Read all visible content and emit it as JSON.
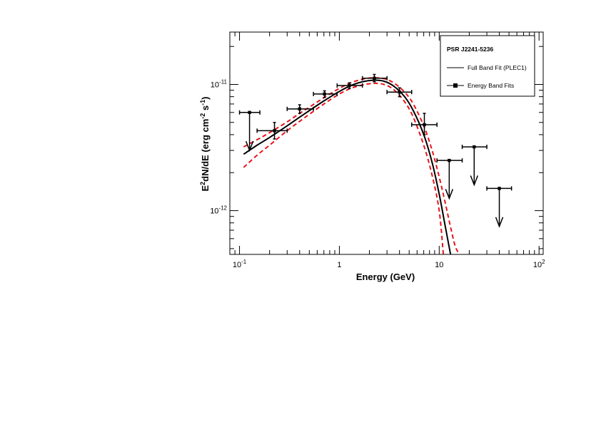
{
  "chart_data": {
    "type": "scatter",
    "x_scale": "log",
    "y_scale": "log",
    "xlim": [
      0.08,
      110
    ],
    "ylim": [
      4.5e-13,
      2.6e-11
    ],
    "xlabel": "Energy (GeV)",
    "ylabel": {
      "base": "E",
      "sup1": "2",
      "mid": "dN/dE (erg cm",
      "sup2": "-2",
      "mid2": " s",
      "sup3": "-1",
      "end": ")"
    },
    "x_ticks": [
      {
        "value": 0.1,
        "base": "10",
        "exp": "-1"
      },
      {
        "value": 1,
        "base": "1",
        "exp": ""
      },
      {
        "value": 10,
        "base": "10",
        "exp": ""
      },
      {
        "value": 100,
        "base": "10",
        "exp": "2"
      }
    ],
    "y_ticks": [
      {
        "value": 1e-12,
        "base": "10",
        "exp": "-12"
      },
      {
        "value": 1e-11,
        "base": "10",
        "exp": "-11"
      }
    ],
    "legend": {
      "placement": "top-right",
      "title": "PSR J2241-5236",
      "entries": [
        {
          "label": "Full Band Fit (PLEC1)",
          "style": "line"
        },
        {
          "label": "Energy Band Fits",
          "style": "marker"
        }
      ]
    },
    "model": {
      "name": "Full Band Fit (PLEC1)",
      "x": [
        0.11,
        0.15,
        0.2,
        0.3,
        0.4,
        0.5,
        0.7,
        1.0,
        1.3,
        1.7,
        2.2,
        2.8,
        3.5,
        4.5,
        5.5,
        7.0,
        8.5,
        10,
        11.5,
        13
      ],
      "y": [
        2.8e-12,
        3.3e-12,
        3.8e-12,
        4.7e-12,
        5.5e-12,
        6.2e-12,
        7.4e-12,
        8.8e-12,
        9.8e-12,
        1.05e-11,
        1.08e-11,
        1.06e-11,
        9.7e-12,
        8e-12,
        6.2e-12,
        4e-12,
        2.4e-12,
        1.35e-12,
        7.5e-13,
        4.5e-13
      ]
    },
    "band_upper": {
      "x": [
        0.11,
        0.15,
        0.2,
        0.3,
        0.4,
        0.5,
        0.7,
        1.0,
        1.3,
        1.7,
        2.2,
        2.8,
        3.5,
        4.5,
        5.5,
        7.0,
        8.5,
        10,
        11.5,
        13,
        14.5,
        16
      ],
      "y": [
        3.2e-12,
        3.65e-12,
        4.15e-12,
        5.05e-12,
        5.9e-12,
        6.6e-12,
        7.85e-12,
        9.3e-12,
        1.03e-11,
        1.1e-11,
        1.13e-11,
        1.11e-11,
        1.03e-11,
        8.7e-12,
        7e-12,
        4.7e-12,
        3e-12,
        1.85e-12,
        1.15e-12,
        7.4e-13,
        5.2e-13,
        4.5e-13
      ]
    },
    "band_lower": {
      "x": [
        0.11,
        0.15,
        0.2,
        0.3,
        0.4,
        0.5,
        0.7,
        1.0,
        1.3,
        1.7,
        2.2,
        2.8,
        3.5,
        4.5,
        5.5,
        7.0,
        8.5,
        10,
        11
      ],
      "y": [
        2.2e-12,
        2.75e-12,
        3.3e-12,
        4.3e-12,
        5.1e-12,
        5.8e-12,
        7e-12,
        8.4e-12,
        9.3e-12,
        9.9e-12,
        1.02e-11,
        1e-11,
        9.1e-12,
        7.3e-12,
        5.5e-12,
        3.3e-12,
        1.9e-12,
        1e-12,
        4.5e-13
      ]
    },
    "points": [
      {
        "x": 0.224,
        "y": 4.3e-12,
        "xlo": 0.15,
        "xhi": 0.3,
        "ylo": 3.7e-12,
        "yhi": 5e-12
      },
      {
        "x": 0.4,
        "y": 6.4e-12,
        "xlo": 0.3,
        "xhi": 0.55,
        "ylo": 5.9e-12,
        "yhi": 6.9e-12
      },
      {
        "x": 0.71,
        "y": 8.4e-12,
        "xlo": 0.55,
        "xhi": 0.95,
        "ylo": 7.9e-12,
        "yhi": 8.9e-12
      },
      {
        "x": 1.26,
        "y": 9.8e-12,
        "xlo": 0.95,
        "xhi": 1.7,
        "ylo": 9.3e-12,
        "yhi": 1.03e-11
      },
      {
        "x": 2.24,
        "y": 1.12e-11,
        "xlo": 1.7,
        "xhi": 3.0,
        "ylo": 1.05e-11,
        "yhi": 1.2e-11
      },
      {
        "x": 4.0,
        "y": 8.7e-12,
        "xlo": 3.0,
        "xhi": 5.3,
        "ylo": 8e-12,
        "yhi": 9.4e-12
      },
      {
        "x": 7.1,
        "y": 4.8e-12,
        "xlo": 5.3,
        "xhi": 9.5,
        "ylo": 4e-12,
        "yhi": 5.9e-12
      }
    ],
    "upper_limits": [
      {
        "x": 0.126,
        "y": 6e-12,
        "xlo": 0.1,
        "xhi": 0.16,
        "arrow_to": 3e-12
      },
      {
        "x": 12.6,
        "y": 2.5e-12,
        "xlo": 9.5,
        "xhi": 17,
        "arrow_to": 1.25e-12
      },
      {
        "x": 22.4,
        "y": 3.2e-12,
        "xlo": 17,
        "xhi": 30,
        "arrow_to": 1.6e-12
      },
      {
        "x": 40,
        "y": 1.5e-12,
        "xlo": 30,
        "xhi": 53,
        "arrow_to": 7.5e-13
      }
    ]
  }
}
